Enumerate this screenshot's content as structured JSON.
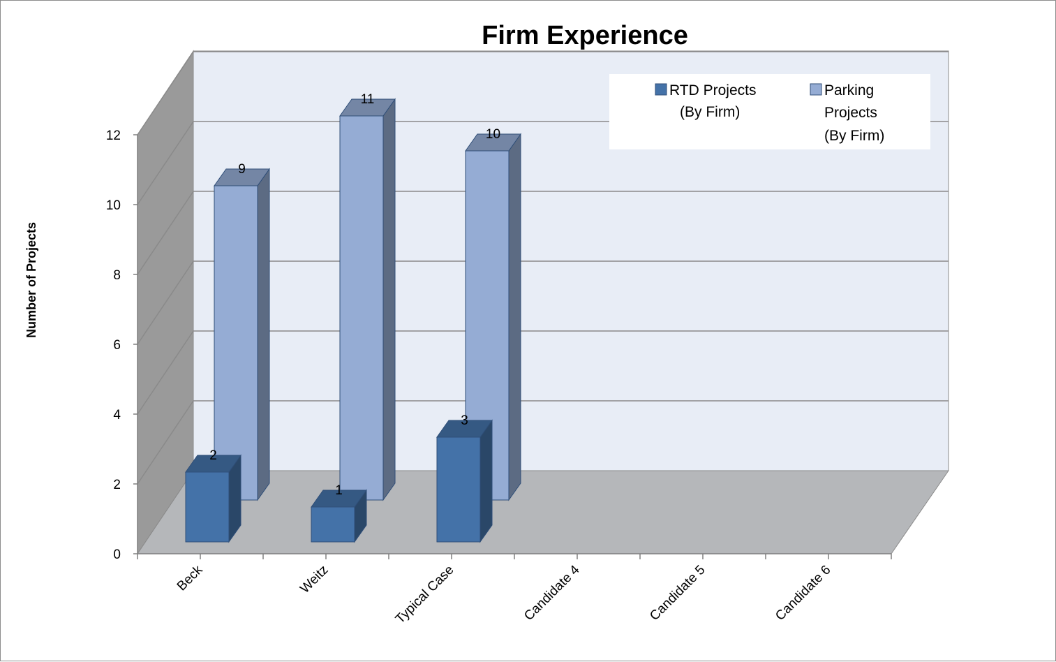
{
  "chart_data": {
    "type": "bar",
    "title": "Firm Experience",
    "ylabel": "Number of Projects",
    "xlabel": "",
    "categories": [
      "Beck",
      "Weitz",
      "Typical Case",
      "Candidate 4",
      "Candidate 5",
      "Candidate 6"
    ],
    "series": [
      {
        "name": "RTD Projects (By Firm)",
        "values": [
          2,
          1,
          3,
          null,
          null,
          null
        ],
        "color": "#4472a8"
      },
      {
        "name": "Parking Projects (By Firm)",
        "values": [
          9,
          11,
          10,
          null,
          null,
          null
        ],
        "color": "#95acd4"
      }
    ],
    "ylim": [
      0,
      12
    ],
    "yticks": [
      "0",
      "2",
      "4",
      "6",
      "8",
      "10",
      "12"
    ],
    "grid": true,
    "legend_position": "top-right",
    "legend": {
      "rtd_lines": [
        "RTD Projects",
        "(By Firm)"
      ],
      "parking_lines": [
        "Parking",
        "Projects",
        "(By Firm)"
      ]
    },
    "style": "3d-clustered-column",
    "wall_color": "#e8edf6",
    "floor_color": "#b5b7ba",
    "side_wall_color": "#9a9a9a"
  }
}
